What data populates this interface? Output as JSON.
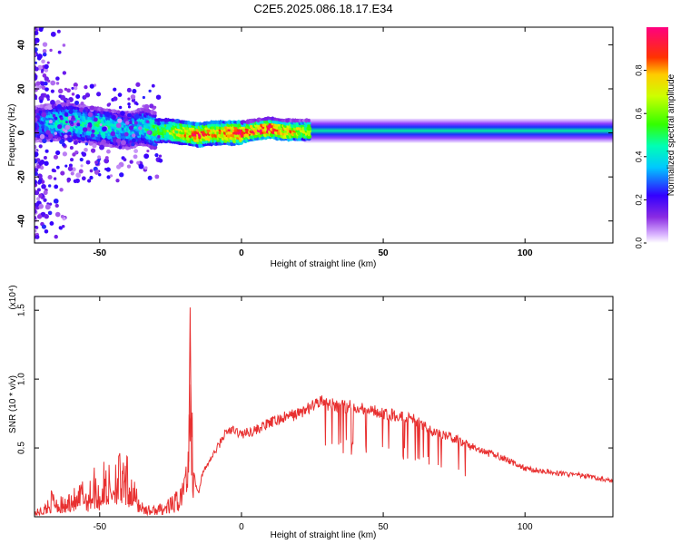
{
  "title": "C2E5.2025.086.18.17.E34",
  "colors": {
    "snr_line": "#e83030",
    "axis": "#000000",
    "colorbar_palette": "rainbow (violet→blue→cyan→green→yellow→red→magenta)"
  },
  "chart_data": [
    {
      "type": "heatmap",
      "xlabel": "Height of straight line (km)",
      "ylabel": "Frequency (Hz)",
      "xlim": [
        -73,
        131
      ],
      "ylim": [
        -50,
        48
      ],
      "xticks": [
        -50,
        0,
        50,
        100
      ],
      "yticks": [
        -40,
        -20,
        0,
        20,
        40
      ],
      "colorbar": {
        "label": "Normalized spectral amplitude",
        "range": [
          0,
          1
        ],
        "ticks": [
          "0.0",
          "0.2",
          "0.4",
          "0.6",
          "0.8"
        ]
      },
      "ridge": {
        "x": [
          -73,
          -65,
          -60,
          -55,
          -50,
          -45,
          -40,
          -35,
          -30,
          -25,
          -20,
          -15,
          -10,
          -5,
          0,
          5,
          10,
          15,
          20,
          30,
          50,
          80,
          110,
          131
        ],
        "center_freq": [
          4,
          5,
          5,
          4,
          3,
          2,
          1,
          3,
          1,
          1,
          0,
          -1,
          0,
          0,
          0,
          1,
          2,
          1,
          1,
          1,
          1,
          1,
          1,
          1
        ],
        "peak_amplitude": [
          0.25,
          0.4,
          0.45,
          0.4,
          0.45,
          0.4,
          0.35,
          0.4,
          0.5,
          0.6,
          0.75,
          0.85,
          0.75,
          0.8,
          0.9,
          0.85,
          0.95,
          0.8,
          0.7,
          0.55,
          0.5,
          0.5,
          0.5,
          0.5
        ]
      },
      "grid": false
    },
    {
      "type": "line",
      "xlabel": "Height of straight line (km)",
      "ylabel": "SNR (10 * v/v)",
      "y_multiplier": "(x10⁴)",
      "xlim": [
        -73,
        131
      ],
      "ylim": [
        0,
        1.6
      ],
      "xticks": [
        -50,
        0,
        50,
        100
      ],
      "yticks": [
        0.5,
        1.0,
        1.5
      ],
      "series": [
        {
          "x": [
            -73,
            -70,
            -68,
            -66,
            -64,
            -62,
            -60,
            -58,
            -56,
            -54,
            -52,
            -50,
            -48,
            -46,
            -44,
            -42,
            -40,
            -38,
            -36,
            -34,
            -32,
            -30,
            -28,
            -26,
            -24,
            -22,
            -20,
            -19,
            -18,
            -17,
            -16,
            -15,
            -14,
            -12,
            -10,
            -8,
            -6,
            -4,
            -2,
            0,
            5,
            10,
            15,
            20,
            25,
            28,
            30,
            35,
            40,
            45,
            50,
            55,
            60,
            65,
            70,
            75,
            80,
            85,
            90,
            95,
            100,
            110,
            120,
            131
          ],
          "y": [
            0.04,
            0.06,
            0.12,
            0.18,
            0.12,
            0.1,
            0.2,
            0.13,
            0.25,
            0.18,
            0.3,
            0.2,
            0.35,
            0.28,
            0.45,
            0.3,
            0.35,
            0.22,
            0.12,
            0.08,
            0.06,
            0.07,
            0.08,
            0.1,
            0.12,
            0.2,
            0.28,
            0.45,
            1.52,
            0.35,
            0.22,
            0.18,
            0.3,
            0.38,
            0.45,
            0.52,
            0.6,
            0.63,
            0.62,
            0.6,
            0.63,
            0.68,
            0.72,
            0.75,
            0.8,
            0.85,
            0.82,
            0.8,
            0.8,
            0.78,
            0.75,
            0.74,
            0.72,
            0.65,
            0.6,
            0.57,
            0.52,
            0.47,
            0.45,
            0.4,
            0.35,
            0.32,
            0.3,
            0.26
          ]
        }
      ],
      "grid": false
    }
  ]
}
